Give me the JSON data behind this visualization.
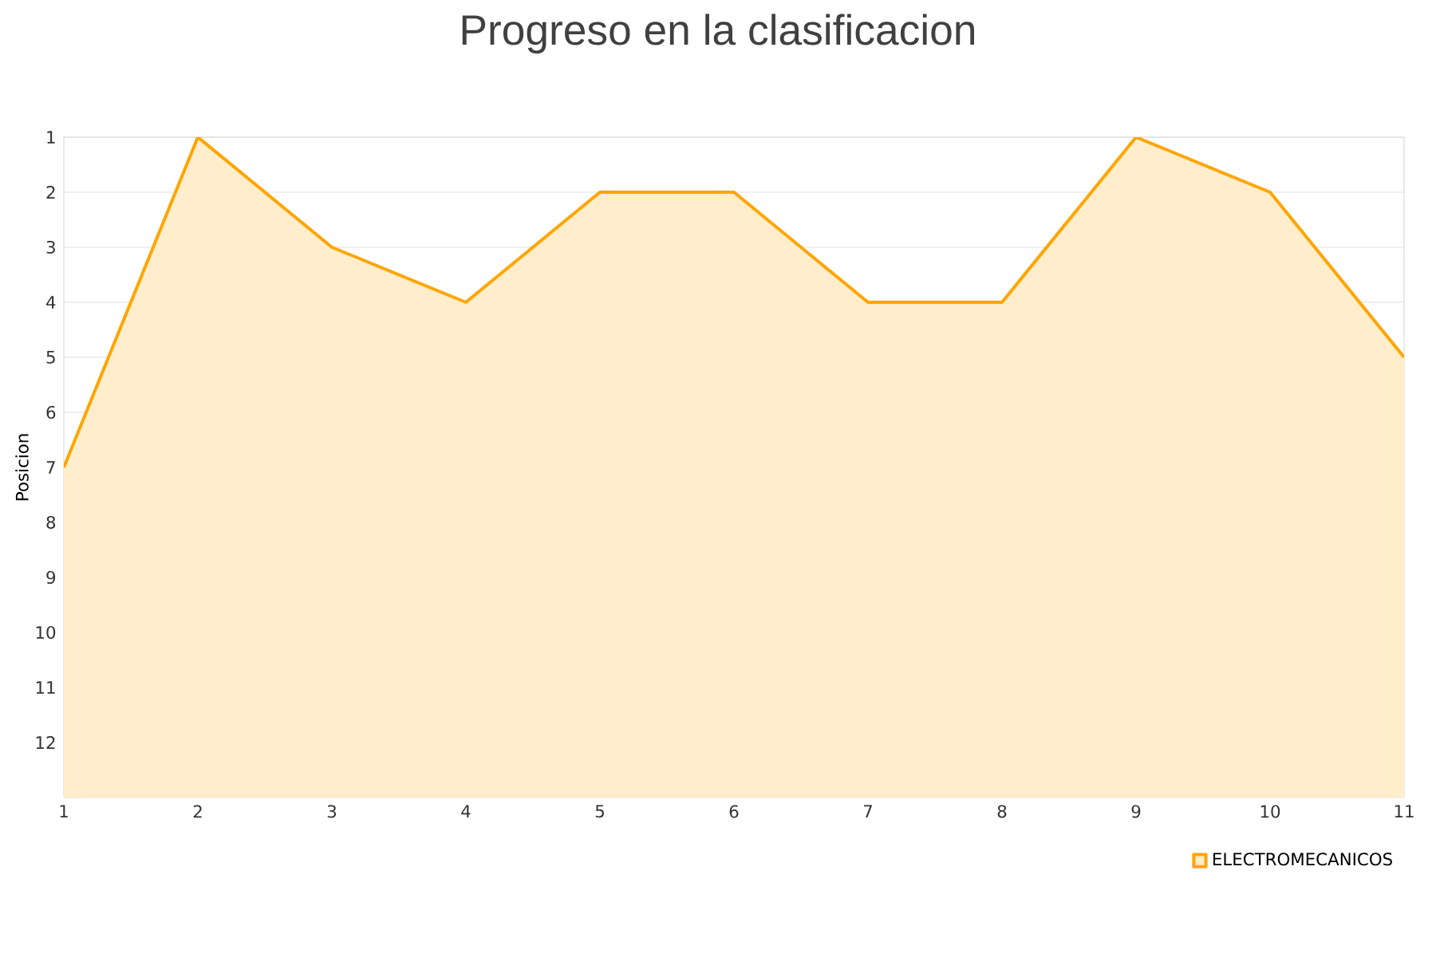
{
  "chart_data": {
    "type": "area",
    "title": "Progreso en la clasificacion",
    "ylabel": "Posicion",
    "x": [
      1,
      2,
      3,
      4,
      5,
      6,
      7,
      8,
      9,
      10,
      11
    ],
    "series": [
      {
        "name": "ELECTROMECANICOS",
        "color": "#ffa500",
        "values": [
          7,
          1,
          3,
          4,
          2,
          2,
          4,
          4,
          1,
          2,
          5
        ]
      }
    ],
    "xlim": [
      1,
      11
    ],
    "xticks": [
      1,
      2,
      3,
      4,
      5,
      6,
      7,
      8,
      9,
      10,
      11
    ],
    "ylim": [
      13,
      1
    ],
    "yticks": [
      1,
      2,
      3,
      4,
      5,
      6,
      7,
      8,
      9,
      10,
      11,
      12
    ],
    "grid": "y",
    "legend": "bottom right",
    "marker": "none",
    "line_style": "solid"
  }
}
